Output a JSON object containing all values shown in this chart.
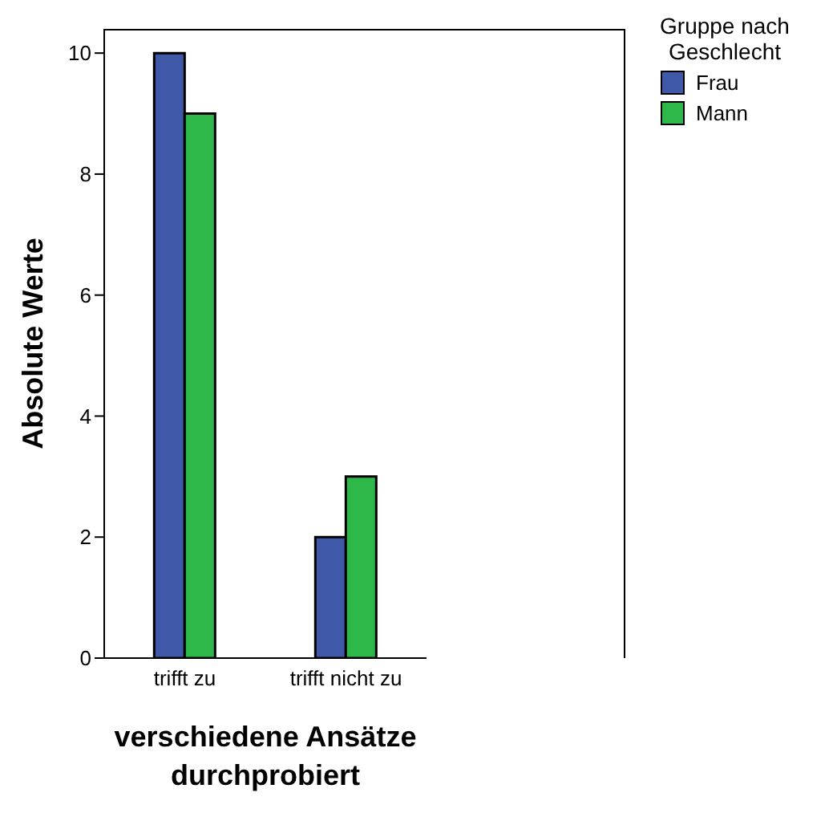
{
  "chart_data": {
    "type": "bar",
    "xlabel": "verschiedene Ansätze durchprobiert",
    "ylabel": "Absolute Werte",
    "legend_title": "Gruppe nach Geschlecht",
    "categories": [
      "trifft zu",
      "trifft nicht zu"
    ],
    "series": [
      {
        "name": "Frau",
        "color": "#3f58a8",
        "values": [
          10,
          2
        ]
      },
      {
        "name": "Mann",
        "color": "#2fb84a",
        "values": [
          9,
          3
        ]
      }
    ],
    "ylim": [
      0,
      10.4
    ],
    "yticks": [
      0,
      2,
      4,
      6,
      8,
      10
    ],
    "grid": false,
    "legend": "top right"
  }
}
